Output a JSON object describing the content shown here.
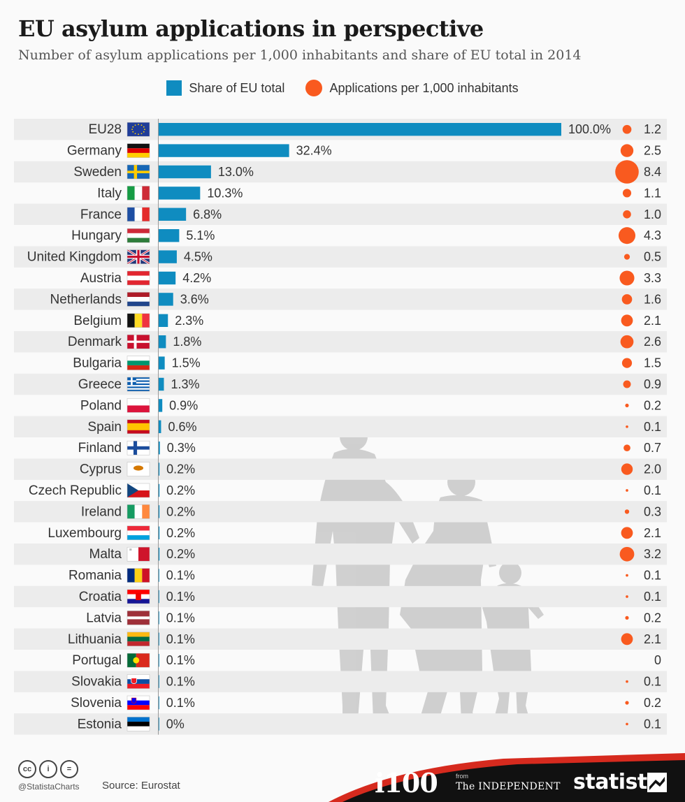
{
  "title": "EU asylum applications in perspective",
  "subtitle": "Number of asylum applications per 1,000 inhabitants and share of EU total in 2014",
  "legend": {
    "bar_label": "Share of EU total",
    "dot_label": "Applications per 1,000 inhabitants"
  },
  "colors": {
    "bar": "#0f8cc0",
    "dot": "#f95a1f",
    "stripe": "#ececec"
  },
  "chart_data": {
    "type": "bar",
    "orientation": "horizontal",
    "categories": [
      "EU28",
      "Germany",
      "Sweden",
      "Italy",
      "France",
      "Hungary",
      "United Kingdom",
      "Austria",
      "Netherlands",
      "Belgium",
      "Denmark",
      "Bulgaria",
      "Greece",
      "Poland",
      "Spain",
      "Finland",
      "Cyprus",
      "Czech Republic",
      "Ireland",
      "Luxembourg",
      "Malta",
      "Romania",
      "Croatia",
      "Latvia",
      "Lithuania",
      "Portugal",
      "Slovakia",
      "Slovenia",
      "Estonia"
    ],
    "series": [
      {
        "name": "Share of EU total",
        "values": [
          100.0,
          32.4,
          13.0,
          10.3,
          6.8,
          5.1,
          4.5,
          4.2,
          3.6,
          2.3,
          1.8,
          1.5,
          1.3,
          0.9,
          0.6,
          0.3,
          0.2,
          0.2,
          0.2,
          0.2,
          0.2,
          0.1,
          0.1,
          0.1,
          0.1,
          0.1,
          0.1,
          0.1,
          0
        ],
        "labels": [
          "100.0%",
          "32.4%",
          "13.0%",
          "10.3%",
          "6.8%",
          "5.1%",
          "4.5%",
          "4.2%",
          "3.6%",
          "2.3%",
          "1.8%",
          "1.5%",
          "1.3%",
          "0.9%",
          "0.6%",
          "0.3%",
          "0.2%",
          "0.2%",
          "0.2%",
          "0.2%",
          "0.2%",
          "0.1%",
          "0.1%",
          "0.1%",
          "0.1%",
          "0.1%",
          "0.1%",
          "0.1%",
          "0%"
        ]
      },
      {
        "name": "Applications per 1,000 inhabitants",
        "values": [
          1.2,
          2.5,
          8.4,
          1.1,
          1.0,
          4.3,
          0.5,
          3.3,
          1.6,
          2.1,
          2.6,
          1.5,
          0.9,
          0.2,
          0.1,
          0.7,
          2.0,
          0.1,
          0.3,
          2.1,
          3.2,
          0.1,
          0.1,
          0.2,
          2.1,
          0,
          0.1,
          0.2,
          0.1
        ],
        "labels": [
          "1.2",
          "2.5",
          "8.4",
          "1.1",
          "1.0",
          "4.3",
          "0.5",
          "3.3",
          "1.6",
          "2.1",
          "2.6",
          "1.5",
          "0.9",
          "0.2",
          "0.1",
          "0.7",
          "2.0",
          "0.1",
          "0.3",
          "2.1",
          "3.2",
          "0.1",
          "0.1",
          "0.2",
          "2.1",
          "0",
          "0.1",
          "0.2",
          "0.1"
        ]
      }
    ],
    "xlim": [
      0,
      100
    ],
    "grid": false,
    "legend_position": "top-center"
  },
  "flags": [
    "eu",
    "de",
    "se",
    "it",
    "fr",
    "hu",
    "gb",
    "at",
    "nl",
    "be",
    "dk",
    "bg",
    "gr",
    "pl",
    "es",
    "fi",
    "cy",
    "cz",
    "ie",
    "lu",
    "mt",
    "ro",
    "hr",
    "lv",
    "lt",
    "pt",
    "sk",
    "si",
    "ee"
  ],
  "footer": {
    "handle": "@StatistaCharts",
    "source": "Source: Eurostat",
    "i100": "i100",
    "from": "from",
    "independent": "The INDEPENDENT",
    "statista": "statista",
    "cc_icons": [
      "cc-icon",
      "by-icon",
      "nd-icon"
    ],
    "cc_labels": [
      "cc",
      "i",
      "="
    ]
  }
}
